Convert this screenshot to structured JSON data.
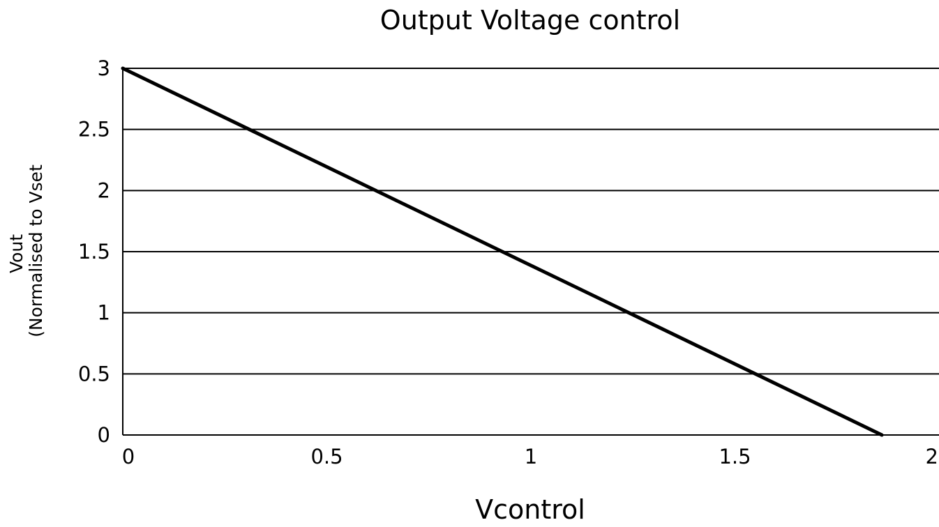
{
  "chart_data": {
    "type": "line",
    "title": "Output Voltage control",
    "xlabel": "Vcontrol",
    "ylabel_lines": [
      "Vout",
      "(Normalised to Vset"
    ],
    "xlim": [
      0,
      2
    ],
    "ylim": [
      0,
      3
    ],
    "x_ticks": [
      "0",
      "0.5",
      "1",
      "1.5",
      "2"
    ],
    "y_ticks": [
      "0",
      "0.5",
      "1",
      "1.5",
      "2",
      "2.5",
      "3"
    ],
    "grid": "horizontal",
    "series": [
      {
        "color": "#000000",
        "x": [
          0,
          1.86
        ],
        "y": [
          3,
          0
        ]
      }
    ]
  }
}
